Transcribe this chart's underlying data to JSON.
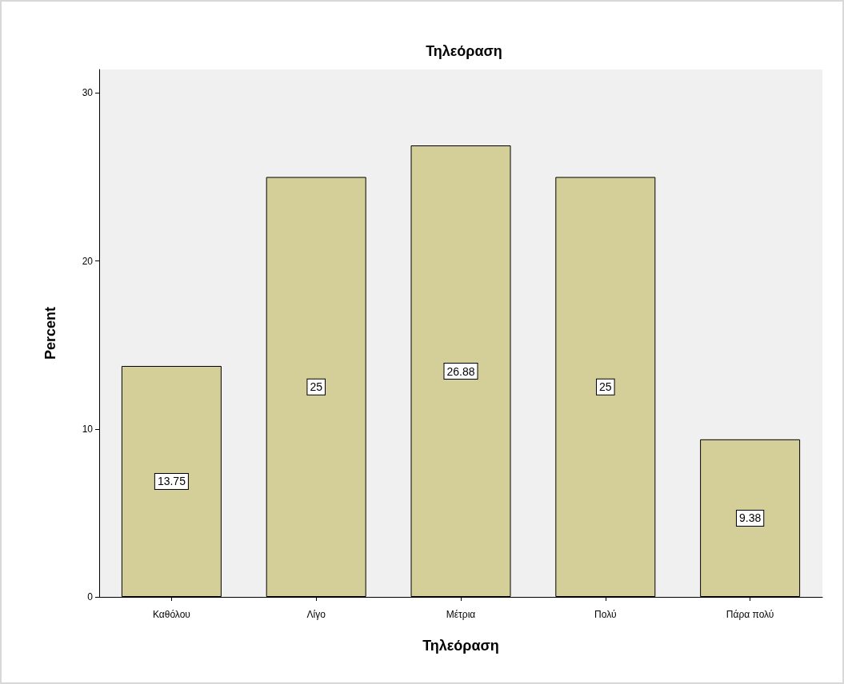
{
  "chart_data": {
    "type": "bar",
    "title": "Τηλεόραση",
    "xlabel": "Τηλεόραση",
    "ylabel": "Percent",
    "categories": [
      "Καθόλου",
      "Λίγο",
      "Μέτρια",
      "Πολύ",
      "Πάρα πολύ"
    ],
    "values": [
      13.75,
      25,
      26.88,
      25,
      9.38
    ],
    "color": "#d4cf99",
    "ylim": [
      0,
      31.4
    ],
    "yticks": [
      0,
      10,
      20,
      30
    ],
    "grid": false,
    "data_labels": true
  }
}
